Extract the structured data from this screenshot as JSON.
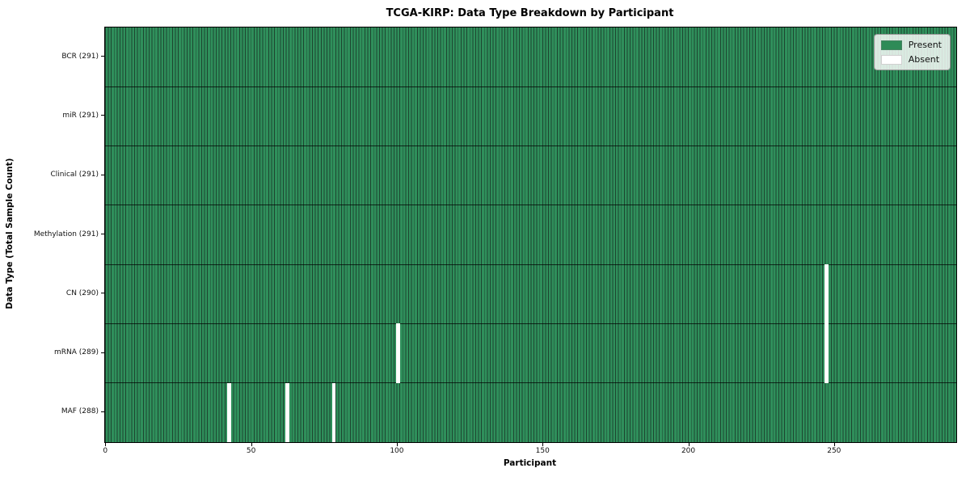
{
  "chart_data": {
    "type": "heatmap",
    "title": "TCGA-KIRP: Data Type Breakdown by Participant",
    "xlabel": "Participant",
    "ylabel": "Data Type (Total Sample Count)",
    "n_participants": 291,
    "x_axis_max": 292,
    "x_ticks": [
      0,
      50,
      100,
      150,
      200,
      250
    ],
    "rows": [
      {
        "label": "BCR (291)",
        "data_type": "BCR",
        "present_count": 291,
        "absent_participants": []
      },
      {
        "label": "miR (291)",
        "data_type": "miR",
        "present_count": 291,
        "absent_participants": []
      },
      {
        "label": "Clinical (291)",
        "data_type": "Clinical",
        "present_count": 291,
        "absent_participants": []
      },
      {
        "label": "Methylation (291)",
        "data_type": "Methylation",
        "present_count": 291,
        "absent_participants": []
      },
      {
        "label": "CN (290)",
        "data_type": "CN",
        "present_count": 290,
        "absent_participants": [
          247
        ]
      },
      {
        "label": "mRNA (289)",
        "data_type": "mRNA",
        "present_count": 289,
        "absent_participants": [
          100,
          247
        ]
      },
      {
        "label": "MAF (288)",
        "data_type": "MAF",
        "present_count": 288,
        "absent_participants": [
          42,
          62,
          78
        ]
      }
    ],
    "legend": [
      {
        "label": "Present",
        "color": "#2e8b57"
      },
      {
        "label": "Absent",
        "color": "#ffffff"
      }
    ],
    "colors": {
      "present_fill": "#2f8f5b",
      "cell_edge": "#1d4530",
      "absent_fill": "#ffffff",
      "row_divider": "#1a1a1a",
      "axis": "#000000"
    },
    "legend_position": "upper right",
    "grid": "cell-edges"
  }
}
